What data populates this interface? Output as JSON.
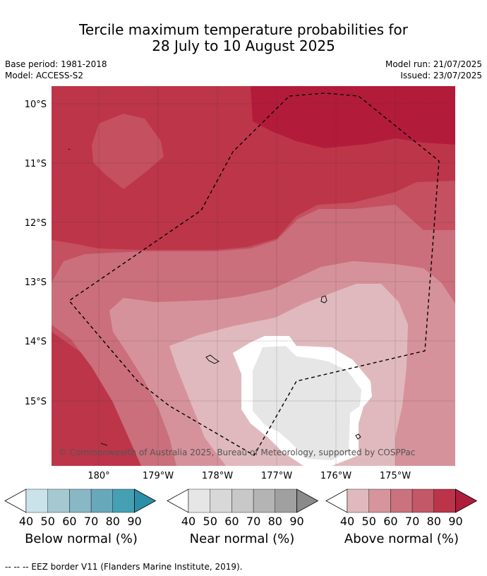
{
  "title_line1": "Tercile maximum temperature probabilities for",
  "title_line2": "28 July to 10 August 2025",
  "base_period": "Base period: 1981-2018",
  "model": "Model: ACCESS-S2",
  "model_run": "Model run: 21/07/2025",
  "issued": "Issued: 23/07/2025",
  "lat_labels": [
    "10°S",
    "11°S",
    "12°S",
    "13°S",
    "14°S",
    "15°S"
  ],
  "lon_labels": [
    "180°",
    "179°W",
    "178°W",
    "177°W",
    "176°W",
    "175°W"
  ],
  "copyright": "© Commonwealth of Australia 2025, Bureau of Meteorology, supported by COSPPac",
  "colorbars": [
    {
      "label": "Below normal (%)",
      "ticks": [
        "40",
        "50",
        "60",
        "70",
        "80",
        "90"
      ],
      "colors": [
        "#ffffff",
        "#cae3eb",
        "#a6c9d1",
        "#89b8c5",
        "#67a9bb",
        "#46a0b4",
        "#2c8fa8"
      ]
    },
    {
      "label": "Near normal (%)",
      "ticks": [
        "40",
        "50",
        "60",
        "70",
        "80",
        "90"
      ],
      "colors": [
        "#ffffff",
        "#e6e6e6",
        "#d8d8d8",
        "#c8c8c8",
        "#b4b4b4",
        "#a0a0a0",
        "#8a8a8a"
      ]
    },
    {
      "label": "Above normal (%)",
      "ticks": [
        "40",
        "50",
        "60",
        "70",
        "80",
        "90"
      ],
      "colors": [
        "#ffffff",
        "#e0b9be",
        "#d6959d",
        "#ca737e",
        "#c35868",
        "#bb3449",
        "#b01c3b"
      ]
    }
  ],
  "footnote": "--  --  -- EEZ border V11 (Flanders Marine Institute, 2019).",
  "map_colors": {
    "above_80_90": "#b31b3b",
    "above_70_80": "#bd3549",
    "above_60_70": "#c45060",
    "above_50_60": "#ca6f7b",
    "above_40_50": "#d6929b",
    "above_lt40": "#e0b9be",
    "near_40_50": "#e6e6e6",
    "white": "#ffffff"
  }
}
